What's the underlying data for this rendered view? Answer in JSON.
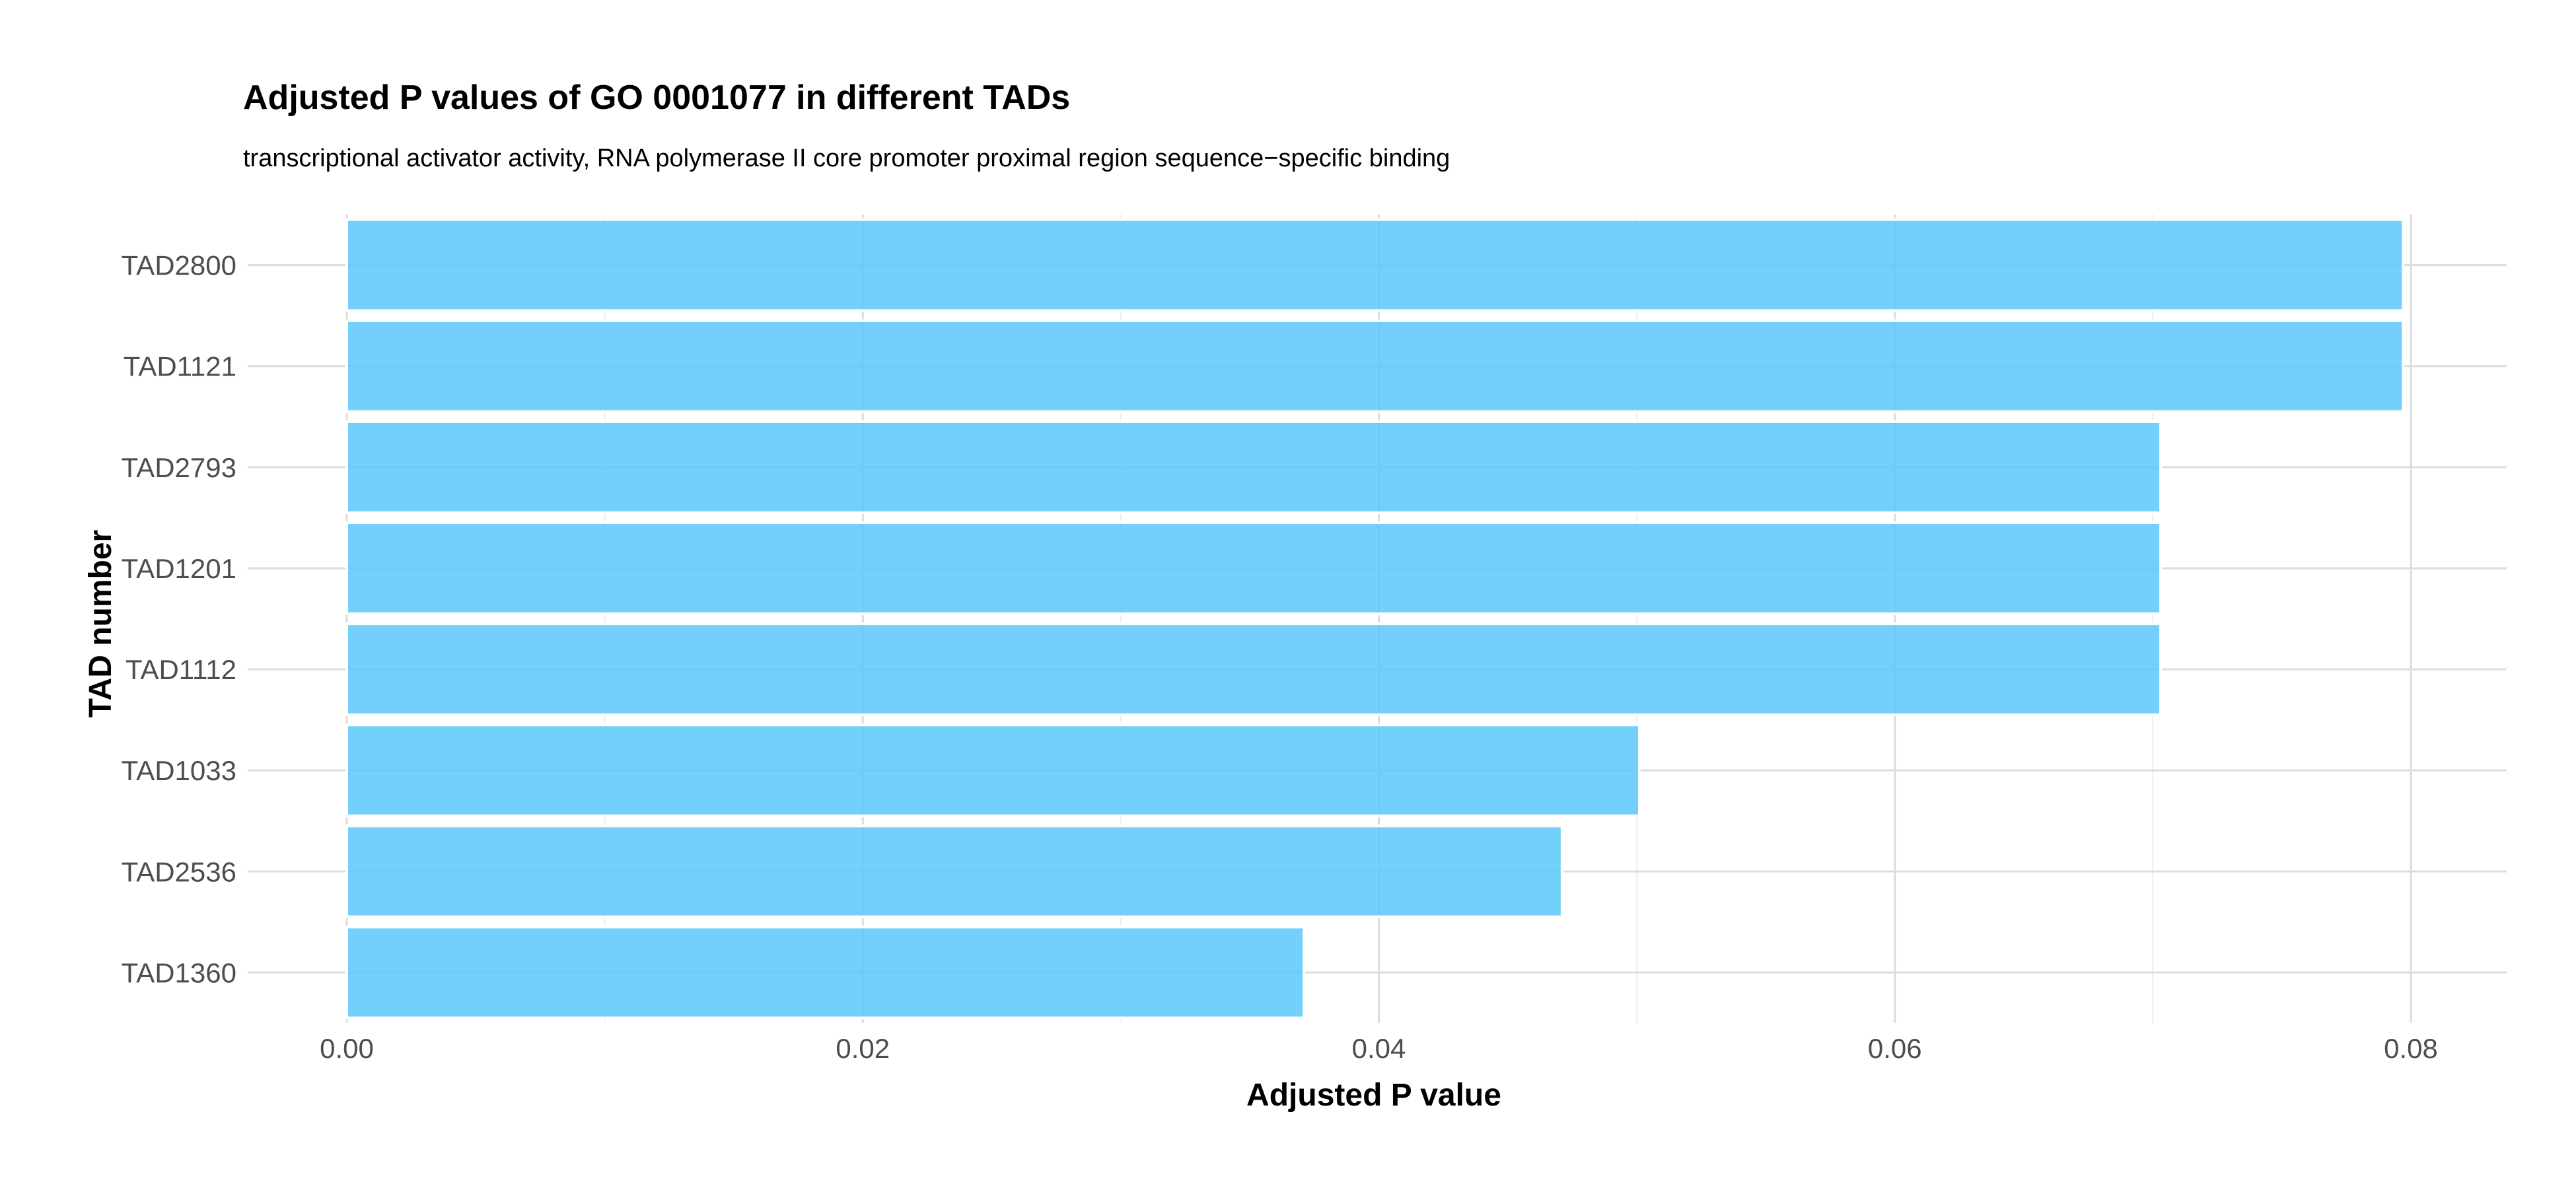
{
  "chart_data": {
    "type": "bar",
    "orientation": "horizontal",
    "title": "Adjusted P values of GO 0001077 in different TADs",
    "subtitle": "transcriptional activator activity, RNA polymerase II core promoter proximal region sequence−specific binding",
    "xlabel": "Adjusted P value",
    "ylabel": "TAD number",
    "categories": [
      "TAD2800",
      "TAD1121",
      "TAD2793",
      "TAD1201",
      "TAD1112",
      "TAD1033",
      "TAD2536",
      "TAD1360"
    ],
    "values": [
      0.0797,
      0.0797,
      0.0703,
      0.0703,
      0.0703,
      0.0501,
      0.0471,
      0.0371
    ],
    "xlim": [
      0,
      0.084
    ],
    "xticks": [
      0.0,
      0.02,
      0.04,
      0.06,
      0.08
    ],
    "xtick_labels": [
      "0.00",
      "0.02",
      "0.04",
      "0.06",
      "0.08"
    ],
    "grid": true,
    "legend": "none",
    "bar_color": "#5bc8fa"
  }
}
